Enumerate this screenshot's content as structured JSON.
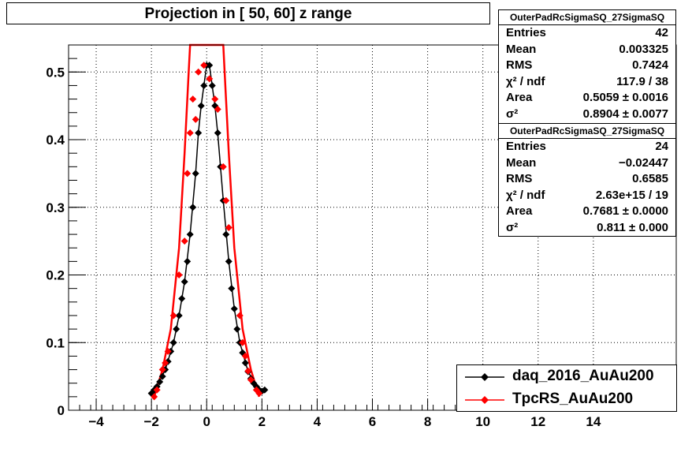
{
  "title": "Projection in [  50,  60] z range",
  "stats": [
    {
      "header": "OuterPadRcSigmaSQ_27SigmaSQ",
      "rows": [
        {
          "key": "Entries",
          "value": "42"
        },
        {
          "key": "Mean",
          "value": "0.003325"
        },
        {
          "key": "RMS",
          "value": "0.7424"
        },
        {
          "key": "χ² / ndf",
          "value": "117.9 / 38"
        },
        {
          "key": "Area",
          "value": "0.5059 ± 0.0016"
        },
        {
          "key": "σ²",
          "value": "0.8904 ± 0.0077"
        }
      ]
    },
    {
      "header": "OuterPadRcSigmaSQ_27SigmaSQ",
      "rows": [
        {
          "key": "Entries",
          "value": "24"
        },
        {
          "key": "Mean",
          "value": "−0.02447"
        },
        {
          "key": "RMS",
          "value": "0.6585"
        },
        {
          "key": "χ² / ndf",
          "value": "2.63e+15 / 19"
        },
        {
          "key": "Area",
          "value": "0.7681 ± 0.0000"
        },
        {
          "key": "σ²",
          "value": "0.811 ± 0.000"
        }
      ]
    }
  ],
  "legend": [
    "daq_2016_AuAu200",
    "TpcRS_AuAu200"
  ],
  "chart_data": {
    "type": "scatter",
    "title": "Projection in [  50,  60] z range",
    "xlabel": "",
    "ylabel": "",
    "xlim": [
      -5,
      17
    ],
    "ylim": [
      0,
      0.54
    ],
    "x_ticks": [
      -4,
      -2,
      0,
      2,
      4,
      6,
      8,
      10,
      12,
      14
    ],
    "y_ticks": [
      0,
      0.1,
      0.2,
      0.3,
      0.4,
      0.5
    ],
    "y_tick_labels": [
      "0",
      "0.1",
      "0.2",
      "0.3",
      "0.4",
      "0.5"
    ],
    "grid": true,
    "legend_position": "bottom-right",
    "series": [
      {
        "name": "daq_2016_AuAu200",
        "color": "#000000",
        "style": "points+line",
        "x": [
          -2.0,
          -1.9,
          -1.8,
          -1.7,
          -1.6,
          -1.5,
          -1.4,
          -1.3,
          -1.2,
          -1.1,
          -1.0,
          -0.9,
          -0.8,
          -0.7,
          -0.6,
          -0.5,
          -0.4,
          -0.3,
          -0.2,
          -0.1,
          0.0,
          0.1,
          0.2,
          0.3,
          0.4,
          0.5,
          0.6,
          0.7,
          0.8,
          0.9,
          1.0,
          1.1,
          1.2,
          1.3,
          1.4,
          1.5,
          1.6,
          1.7,
          1.8,
          1.9,
          2.0,
          2.1
        ],
        "y": [
          0.025,
          0.03,
          0.035,
          0.042,
          0.05,
          0.06,
          0.072,
          0.087,
          0.1,
          0.12,
          0.14,
          0.165,
          0.19,
          0.22,
          0.26,
          0.3,
          0.35,
          0.41,
          0.45,
          0.48,
          0.51,
          0.51,
          0.48,
          0.45,
          0.41,
          0.36,
          0.31,
          0.26,
          0.22,
          0.18,
          0.15,
          0.12,
          0.1,
          0.085,
          0.07,
          0.057,
          0.047,
          0.04,
          0.035,
          0.03,
          0.028,
          0.03
        ],
        "line_x": [
          -2.1,
          -1.8,
          -1.5,
          -1.2,
          -1.0,
          -0.8,
          -0.6,
          -0.4,
          -0.3,
          -0.2,
          -0.1,
          0.0,
          0.1,
          0.2,
          0.3,
          0.4,
          0.6,
          0.8,
          1.0,
          1.2,
          1.5,
          1.8,
          2.1
        ],
        "line_y": [
          0.025,
          0.035,
          0.06,
          0.1,
          0.14,
          0.19,
          0.26,
          0.35,
          0.41,
          0.45,
          0.48,
          0.51,
          0.51,
          0.48,
          0.45,
          0.41,
          0.31,
          0.22,
          0.15,
          0.1,
          0.057,
          0.035,
          0.028
        ]
      },
      {
        "name": "TpcRS_AuAu200",
        "color": "#ff0000",
        "style": "points+fit",
        "x": [
          -1.9,
          -1.8,
          -1.6,
          -1.5,
          -1.4,
          -1.2,
          -1.0,
          -0.8,
          -0.7,
          -0.6,
          -0.5,
          -0.4,
          -0.3,
          -0.1,
          0.1,
          0.3,
          0.4,
          0.6,
          0.7,
          0.8,
          1.2,
          1.3,
          1.4,
          1.5,
          1.6,
          1.8,
          1.9
        ],
        "y": [
          0.02,
          0.03,
          0.06,
          0.07,
          0.087,
          0.14,
          0.2,
          0.25,
          0.35,
          0.41,
          0.46,
          0.43,
          0.5,
          0.51,
          0.49,
          0.46,
          0.445,
          0.36,
          0.31,
          0.27,
          0.14,
          0.1,
          0.08,
          0.058,
          0.045,
          0.03,
          0.025
        ],
        "fit_x": [
          -1.9,
          -1.6,
          -1.3,
          -1.0,
          -0.8,
          -0.65,
          -0.6,
          0.6,
          0.65,
          0.8,
          1.0,
          1.3,
          1.6,
          1.9
        ],
        "fit_y": [
          0.02,
          0.06,
          0.12,
          0.24,
          0.38,
          0.5,
          0.54,
          0.54,
          0.5,
          0.38,
          0.24,
          0.12,
          0.06,
          0.02
        ]
      }
    ]
  }
}
